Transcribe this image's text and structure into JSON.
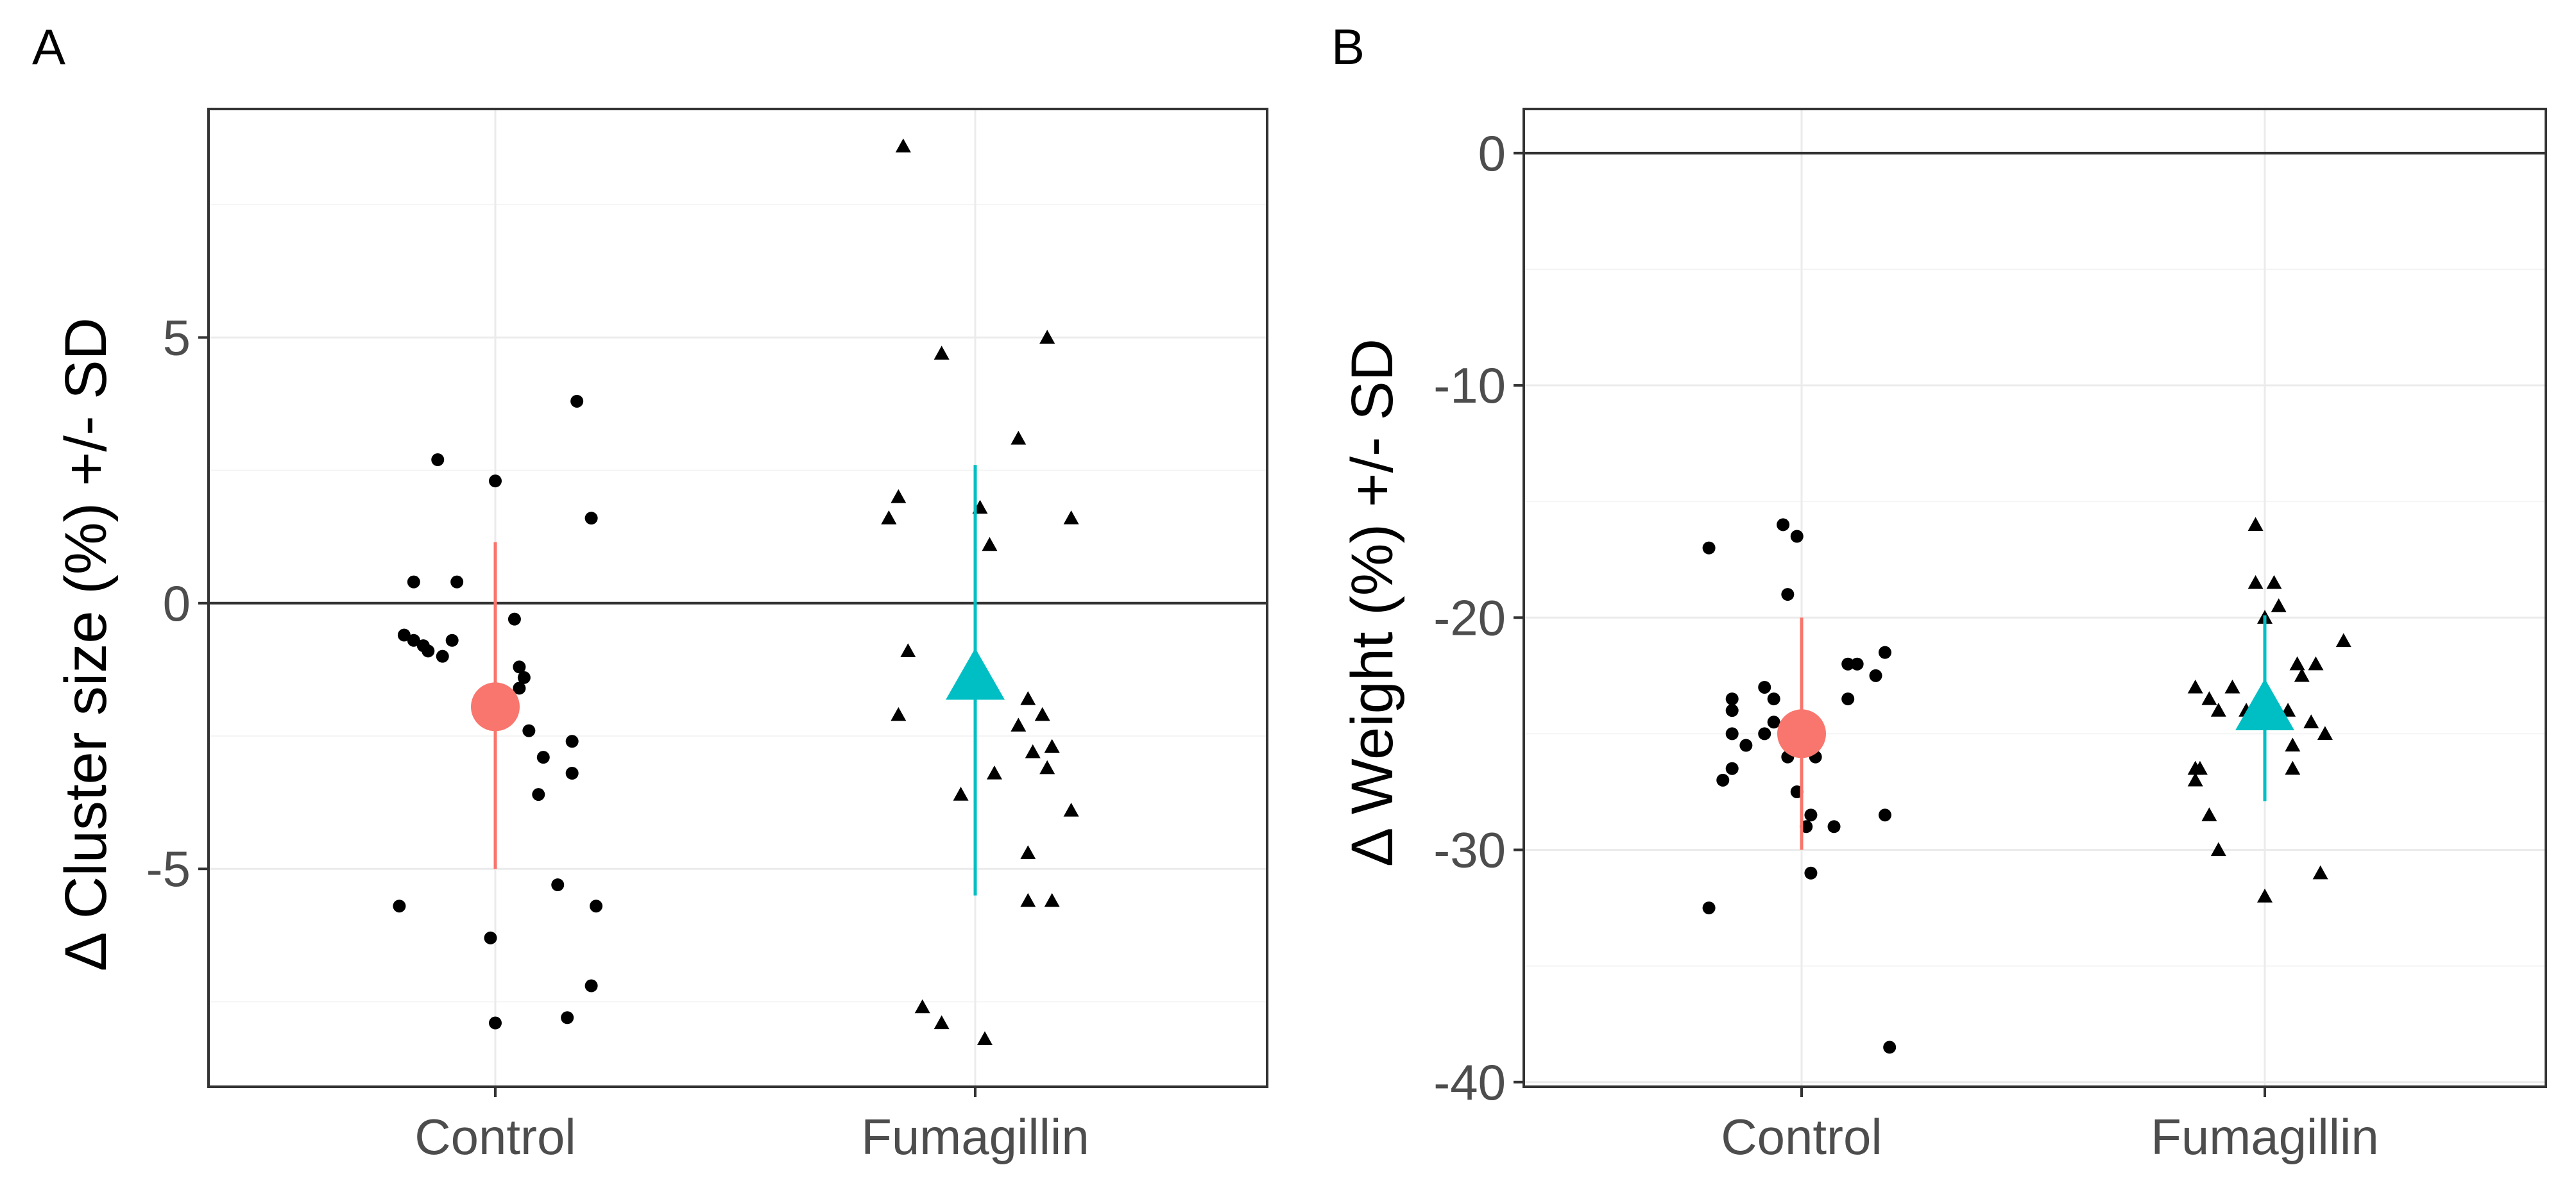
{
  "chart_data": [
    {
      "type": "scatter",
      "panel_label": "A",
      "ylabel": "Δ Cluster size (%) +/- SD",
      "xlabel": "",
      "categories": [
        "Control",
        "Fumagillin"
      ],
      "ylim": [
        -9.1,
        9.3
      ],
      "yticks": [
        -5,
        0,
        5
      ],
      "ytick_labels": [
        "-5",
        "0",
        "5"
      ],
      "reference_line": 0,
      "grid": true,
      "summary": [
        {
          "category": "Control",
          "mean": -1.95,
          "sd_low": -5.0,
          "sd_high": 1.15,
          "color": "#F8766D",
          "shape": "circle"
        },
        {
          "category": "Fumagillin",
          "mean": -1.4,
          "sd_low": -5.5,
          "sd_high": 2.6,
          "color": "#00BFC4",
          "shape": "triangle"
        }
      ],
      "points": [
        {
          "category": "Control",
          "shape": "circle",
          "offsets": [
            -0.12,
            0.17,
            0.0,
            -0.17,
            0.2,
            -0.08,
            -0.19,
            -0.15,
            -0.14,
            -0.17,
            -0.09,
            0.04,
            0.05,
            0.06,
            0.05,
            -0.11,
            0.07,
            0.16,
            0.1,
            0.16,
            0.09,
            0.13,
            0.21,
            -0.2,
            -0.01,
            0.2,
            0.15,
            0.0
          ],
          "values": [
            2.7,
            3.8,
            2.3,
            0.4,
            1.6,
            0.4,
            -0.6,
            -0.8,
            -0.9,
            -0.7,
            -0.7,
            -0.3,
            -1.2,
            -1.4,
            -1.6,
            -1.0,
            -2.4,
            -2.6,
            -2.9,
            -3.2,
            -3.6,
            -5.3,
            -5.7,
            -5.7,
            -6.3,
            -7.2,
            -7.8,
            -7.9
          ]
        },
        {
          "category": "Fumagillin",
          "shape": "triangle",
          "offsets": [
            -0.15,
            0.15,
            -0.07,
            0.09,
            0.01,
            0.2,
            0.03,
            -0.18,
            -0.16,
            -0.18,
            -0.14,
            0.11,
            0.14,
            0.09,
            0.16,
            0.12,
            0.15,
            -0.16,
            0.04,
            -0.03,
            0.2,
            0.11,
            0.16,
            0.11,
            -0.11,
            -0.07,
            0.02
          ],
          "values": [
            8.6,
            5.0,
            4.7,
            3.1,
            1.8,
            1.6,
            1.1,
            1.6,
            2.0,
            1.6,
            -0.9,
            -1.8,
            -2.1,
            -2.3,
            -2.7,
            -2.8,
            -3.1,
            -2.1,
            -3.2,
            -3.6,
            -3.9,
            -4.7,
            -5.6,
            -5.6,
            -7.6,
            -7.9,
            -8.2
          ]
        }
      ]
    },
    {
      "type": "scatter",
      "panel_label": "B",
      "ylabel": "Δ Weight (%) +/- SD",
      "xlabel": "",
      "categories": [
        "Control",
        "Fumagillin"
      ],
      "ylim": [
        -40.2,
        1.9
      ],
      "yticks": [
        -40,
        -30,
        -20,
        -10,
        0
      ],
      "ytick_labels": [
        "-40",
        "-30",
        "-20",
        "-10",
        "0"
      ],
      "reference_line": 0,
      "grid": true,
      "summary": [
        {
          "category": "Control",
          "mean": -25.0,
          "sd_low": -30.0,
          "sd_high": -20.0,
          "color": "#F8766D",
          "shape": "circle"
        },
        {
          "category": "Fumagillin",
          "mean": -23.9,
          "sd_low": -27.9,
          "sd_high": -19.9,
          "color": "#00BFC4",
          "shape": "triangle"
        }
      ],
      "points": [
        {
          "category": "Control",
          "shape": "circle",
          "offsets": [
            -0.2,
            -0.04,
            -0.01,
            -0.03,
            -0.06,
            -0.15,
            -0.15,
            -0.08,
            -0.12,
            -0.08,
            -0.06,
            -0.17,
            -0.03,
            0.03,
            0.01,
            0.12,
            0.18,
            0.16,
            0.1,
            0.02,
            0.01,
            0.07,
            0.18,
            0.02,
            -0.2,
            -0.15,
            0.1,
            -0.01,
            -0.15,
            0.19
          ],
          "values": [
            -17.0,
            -16.0,
            -16.5,
            -19.0,
            -23.5,
            -23.5,
            -24.0,
            -25.0,
            -25.5,
            -23.0,
            -24.5,
            -27.0,
            -26.0,
            -26.0,
            -25.0,
            -22.0,
            -21.5,
            -22.5,
            -23.5,
            -28.5,
            -29.0,
            -29.0,
            -28.5,
            -31.0,
            -32.5,
            -26.5,
            -22.0,
            -27.5,
            -25.0,
            -38.5
          ]
        },
        {
          "category": "Fumagillin",
          "shape": "triangle",
          "offsets": [
            -0.02,
            -0.02,
            0.02,
            0.17,
            0.0,
            0.03,
            -0.15,
            -0.12,
            -0.1,
            -0.07,
            -0.04,
            -0.01,
            0.07,
            0.08,
            0.11,
            0.1,
            0.05,
            0.13,
            0.06,
            -0.15,
            -0.14,
            -0.12,
            -0.1,
            0.06,
            0.12,
            0.0,
            -0.15,
            -0.15
          ],
          "values": [
            -16.0,
            -18.5,
            -18.5,
            -21.0,
            -20.0,
            -19.5,
            -23.0,
            -23.5,
            -24.0,
            -23.0,
            -24.0,
            -24.5,
            -22.0,
            -22.5,
            -22.0,
            -24.5,
            -24.0,
            -25.0,
            -25.5,
            -26.5,
            -26.5,
            -28.5,
            -30.0,
            -26.5,
            -31.0,
            -32.0,
            -26.5,
            -27.0
          ]
        }
      ]
    }
  ]
}
